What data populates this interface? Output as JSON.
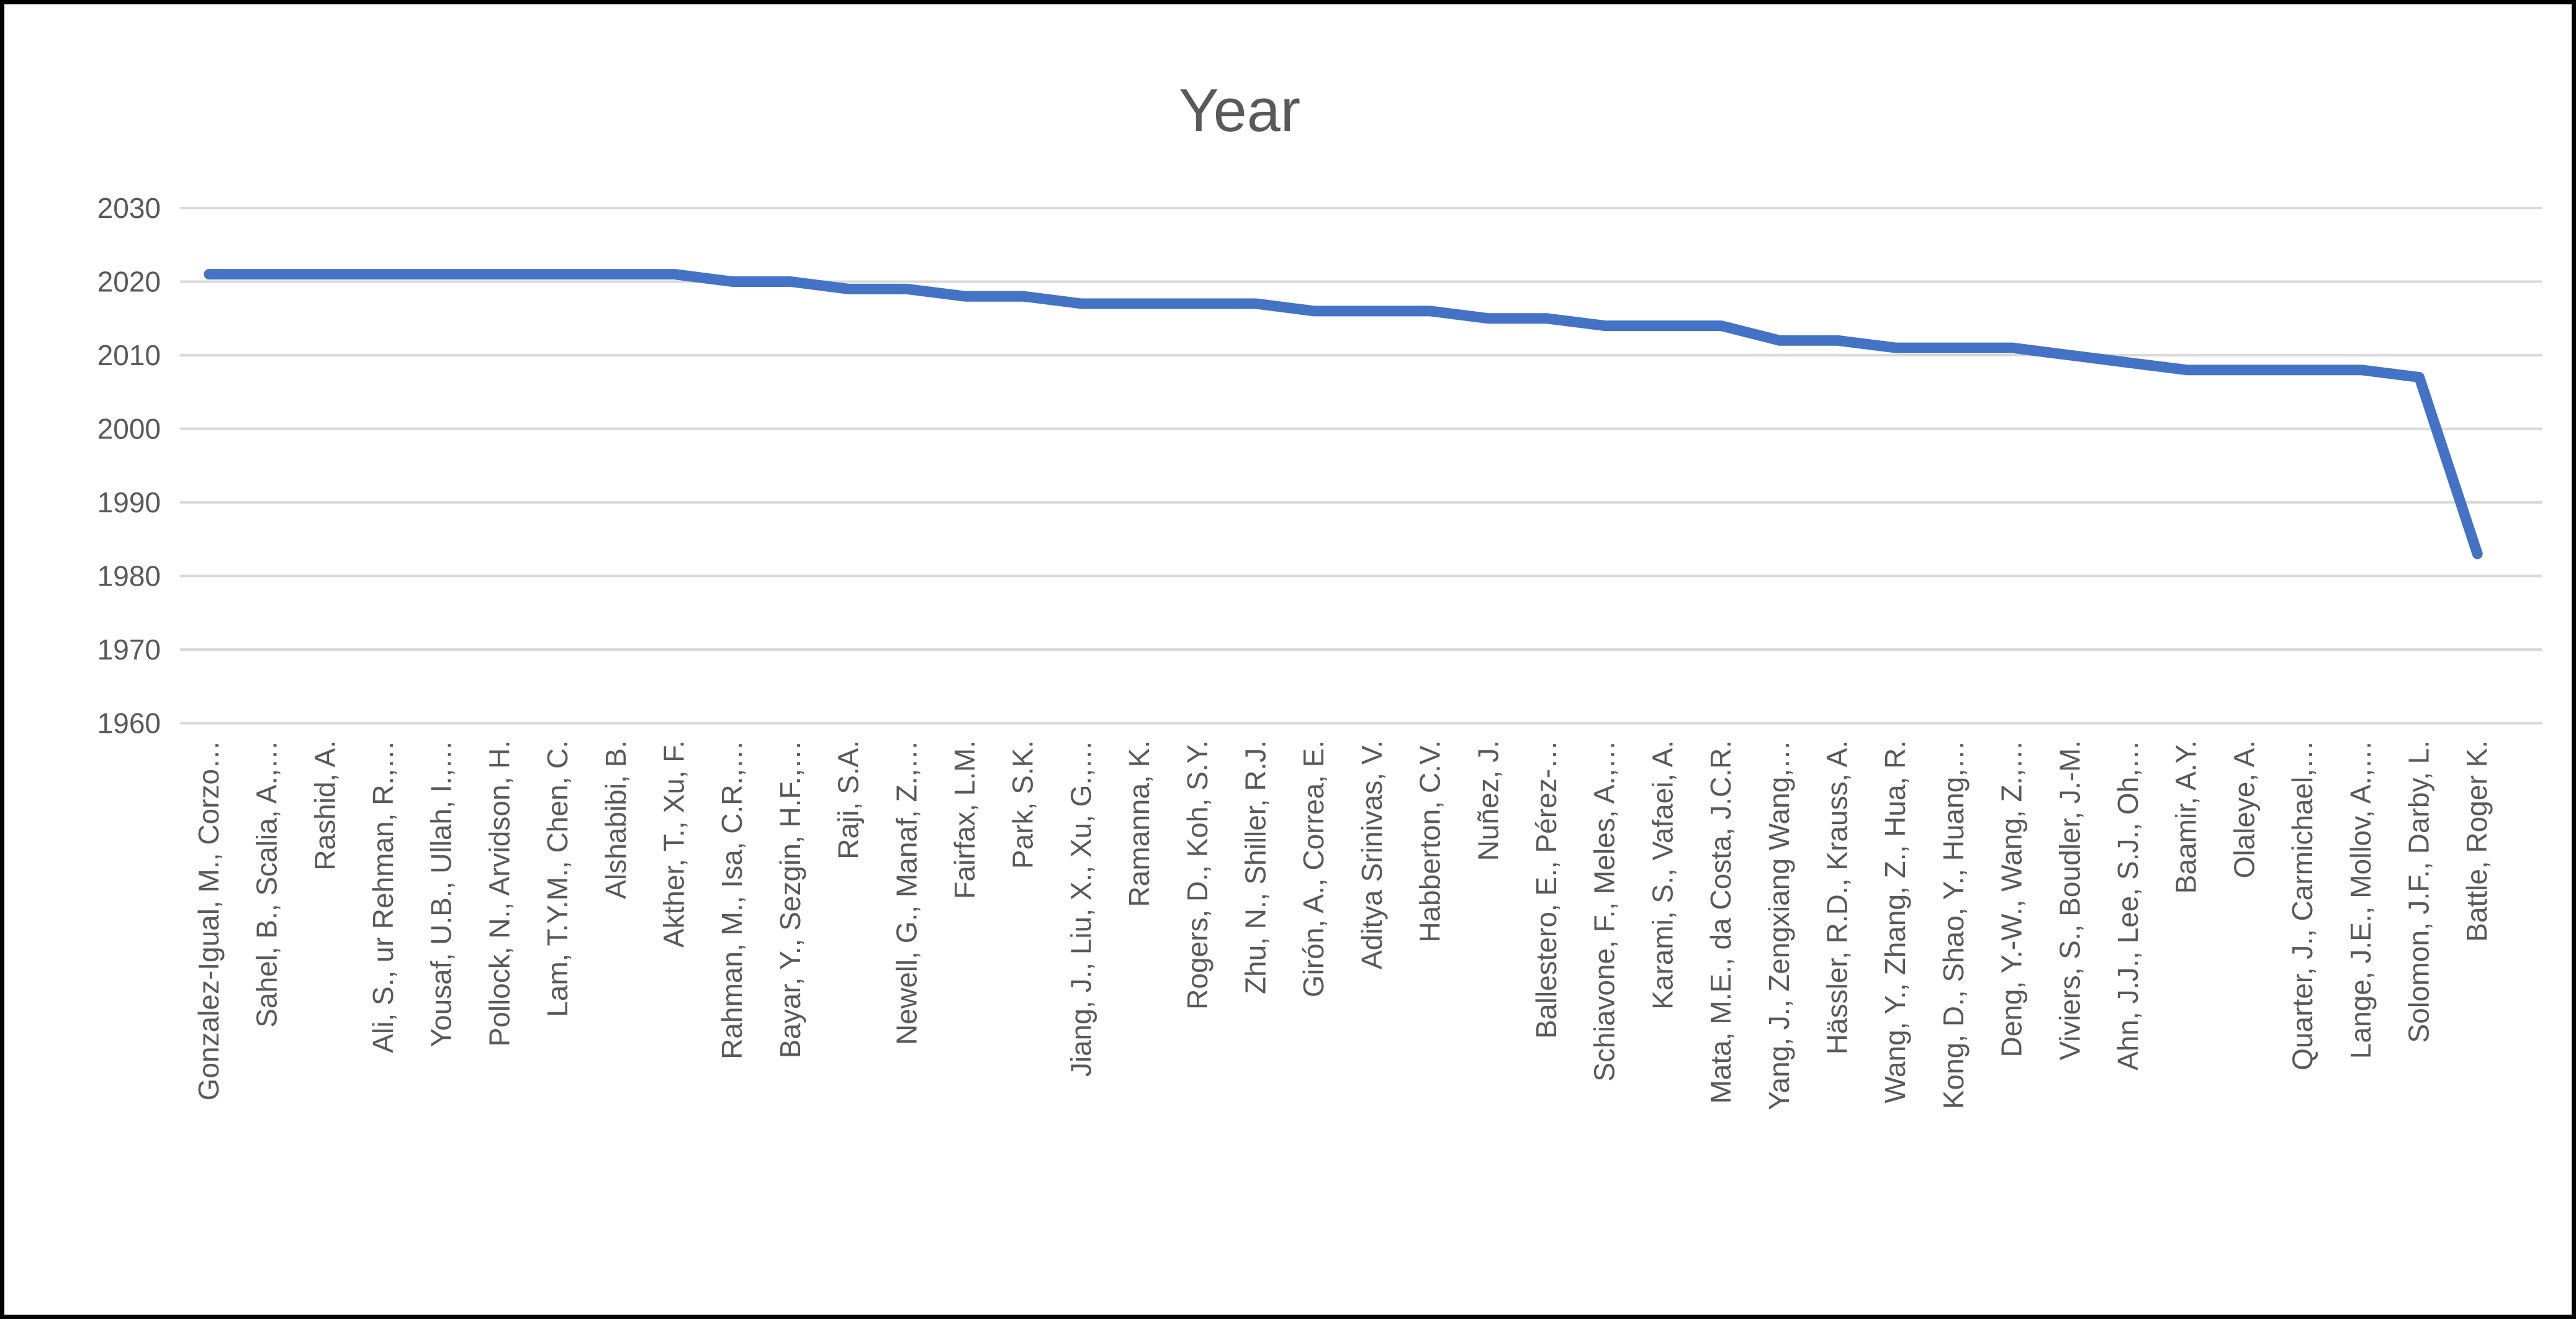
{
  "chart_data": {
    "type": "line",
    "title": "Year",
    "xlabel": "",
    "ylabel": "",
    "ylim": [
      1960,
      2030
    ],
    "yticks": [
      2030,
      2020,
      2010,
      2000,
      1990,
      1980,
      1970,
      1960
    ],
    "grid": true,
    "legend": "none",
    "categories": [
      "Gonzalez-Igual, M., Corzo…",
      "Sahel, B., Scalia, A.,…",
      "Rashid, A.",
      "Ali, S., ur Rehman, R.,…",
      "Yousaf, U.B., Ullah, I.,…",
      "Pollock, N., Arvidson, H.",
      "Lam, T.Y.M., Chen, C.",
      "Alshabibi, B.",
      "Akther, T., Xu, F.",
      "Rahman, M., Isa, C.R.,…",
      "Bayar, Y., Sezgin, H.F.,…",
      "Raji, S.A.",
      "Newell, G., Manaf, Z.,…",
      "Fairfax, L.M.",
      "Park, S.K.",
      "Jiang, J., Liu, X., Xu, G.,…",
      "Ramanna, K.",
      "Rogers, D., Koh, S.Y.",
      "Zhu, N., Shiller, R.J.",
      "Girón, A., Correa, E.",
      "Aditya Srinivas, V.",
      "Habberton, C.V.",
      "Nuñez, J.",
      "Ballestero, E., Pérez-…",
      "Schiavone, F., Meles, A.,…",
      "Karami, S., Vafaei, A.",
      "Mata, M.E., da Costa, J.C.R.",
      "Yang, J., Zengxiang Wang,…",
      "Hässler, R.D., Krauss, A.",
      "Wang, Y., Zhang, Z., Hua, R.",
      "Kong, D., Shao, Y., Huang,…",
      "Deng, Y.-W., Wang, Z.,…",
      "Viviers, S., Boudler, J.-M.",
      "Ahn, J.J., Lee, S.J., Oh,…",
      "Baamir, A.Y.",
      "Olaleye, A.",
      "Quarter, J., Carmichael,…",
      "Lange, J.E., Mollov, A.,…",
      "Solomon, J.F., Darby, L.",
      "Battle, Roger K."
    ],
    "series": [
      {
        "name": "Year",
        "values": [
          2021,
          2021,
          2021,
          2021,
          2021,
          2021,
          2021,
          2021,
          2021,
          2020,
          2020,
          2019,
          2019,
          2018,
          2018,
          2017,
          2017,
          2017,
          2017,
          2016,
          2016,
          2016,
          2015,
          2015,
          2014,
          2014,
          2014,
          2012,
          2012,
          2011,
          2011,
          2011,
          2010,
          2009,
          2008,
          2008,
          2008,
          2008,
          2007,
          1983
        ]
      }
    ],
    "colors": {
      "line": "#4472C4",
      "gridline": "#D9D9D9",
      "text": "#595959",
      "border": "#000000",
      "background": "#FFFFFF"
    }
  }
}
